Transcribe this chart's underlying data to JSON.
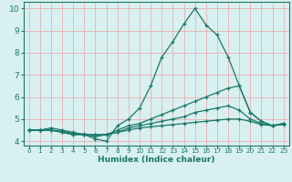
{
  "title": "",
  "xlabel": "Humidex (Indice chaleur)",
  "ylabel": "",
  "bg_color": "#d8f0f0",
  "grid_color": "#e8b8b8",
  "line_color": "#1a7868",
  "tick_color": "#1a7868",
  "spine_color": "#1a7868",
  "xlim": [
    -0.5,
    23.5
  ],
  "ylim": [
    3.8,
    10.3
  ],
  "xticks": [
    0,
    1,
    2,
    3,
    4,
    5,
    6,
    7,
    8,
    9,
    10,
    11,
    12,
    13,
    14,
    15,
    16,
    17,
    18,
    19,
    20,
    21,
    22,
    23
  ],
  "yticks": [
    4,
    5,
    6,
    7,
    8,
    9,
    10
  ],
  "lines": [
    {
      "x": [
        0,
        1,
        2,
        3,
        4,
        5,
        6,
        7,
        8,
        9,
        10,
        11,
        12,
        13,
        14,
        15,
        16,
        17,
        18,
        19,
        20,
        21,
        22,
        23
      ],
      "y": [
        4.5,
        4.5,
        4.6,
        4.5,
        4.4,
        4.3,
        4.1,
        4.0,
        4.7,
        5.0,
        5.5,
        6.5,
        7.8,
        8.5,
        9.3,
        10.0,
        9.25,
        8.8,
        7.8,
        6.5,
        5.3,
        4.9,
        4.7,
        4.8
      ]
    },
    {
      "x": [
        0,
        1,
        2,
        3,
        4,
        5,
        6,
        7,
        8,
        9,
        10,
        11,
        12,
        13,
        14,
        15,
        16,
        17,
        18,
        19,
        20,
        21,
        22,
        23
      ],
      "y": [
        4.5,
        4.5,
        4.5,
        4.4,
        4.3,
        4.3,
        4.3,
        4.3,
        4.5,
        4.7,
        4.8,
        5.0,
        5.2,
        5.4,
        5.6,
        5.8,
        6.0,
        6.2,
        6.4,
        6.5,
        5.3,
        4.9,
        4.7,
        4.8
      ]
    },
    {
      "x": [
        0,
        1,
        2,
        3,
        4,
        5,
        6,
        7,
        8,
        9,
        10,
        11,
        12,
        13,
        14,
        15,
        16,
        17,
        18,
        19,
        20,
        21,
        22,
        23
      ],
      "y": [
        4.5,
        4.5,
        4.5,
        4.4,
        4.3,
        4.3,
        4.2,
        4.3,
        4.4,
        4.6,
        4.7,
        4.8,
        4.9,
        5.0,
        5.1,
        5.3,
        5.4,
        5.5,
        5.6,
        5.4,
        5.0,
        4.8,
        4.7,
        4.8
      ]
    },
    {
      "x": [
        0,
        1,
        2,
        3,
        4,
        5,
        6,
        7,
        8,
        9,
        10,
        11,
        12,
        13,
        14,
        15,
        16,
        17,
        18,
        19,
        20,
        21,
        22,
        23
      ],
      "y": [
        4.5,
        4.5,
        4.5,
        4.45,
        4.35,
        4.32,
        4.28,
        4.3,
        4.4,
        4.5,
        4.6,
        4.65,
        4.7,
        4.75,
        4.8,
        4.85,
        4.9,
        4.95,
        5.0,
        5.0,
        4.9,
        4.75,
        4.7,
        4.75
      ]
    }
  ]
}
